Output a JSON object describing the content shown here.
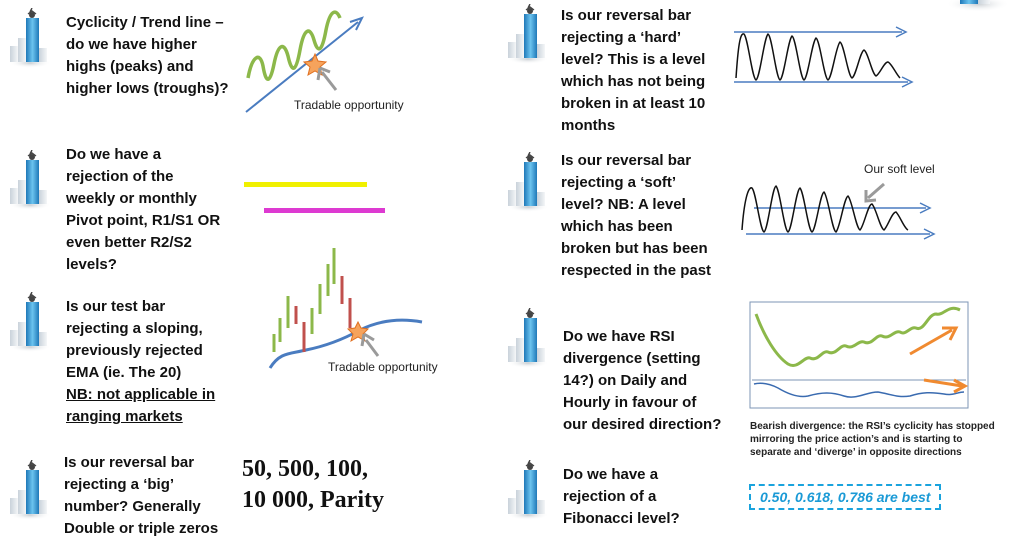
{
  "colors": {
    "wave_green": "#8cb84a",
    "trend_blue": "#4a7cc0",
    "star_orange": "#f6a35c",
    "pivot_yellow": "#f0f000",
    "pivot_magenta": "#dd3ad1",
    "bar_red": "#c0504d",
    "arrow_orange": "#f08a30",
    "fib_border": "#1aa3dd",
    "icon_blue": "#3399cc"
  },
  "items": {
    "trend": {
      "lines": [
        "Cyclicity / Trend line –",
        "do we have higher",
        "highs (peaks) and",
        "higher lows (troughs)?"
      ],
      "callout": "Tradable opportunity"
    },
    "pivot": {
      "lines": [
        "Do we have a",
        "rejection of the",
        "weekly or monthly",
        "Pivot point, R1/S1 OR",
        "even better R2/S2",
        "levels?"
      ]
    },
    "ema": {
      "lines": [
        "Is our test bar",
        "rejecting a sloping,",
        "previously rejected",
        "EMA (ie. The 20)"
      ],
      "underlined": [
        "NB: not applicable in",
        "ranging markets"
      ],
      "callout": "Tradable opportunity"
    },
    "big_number": {
      "lines": [
        "Is our reversal bar",
        "rejecting a ‘big’",
        "number? Generally",
        "Double or triple zeros"
      ],
      "numbers": [
        "50, 500, 100,",
        "10 000, Parity"
      ]
    },
    "hard_level": {
      "lines": [
        "Is our reversal bar",
        "rejecting a ‘hard’",
        "level? This is a level",
        "which has not being",
        "broken in at least 10",
        "months"
      ]
    },
    "soft_level": {
      "lines": [
        "Is our reversal bar",
        "rejecting a ‘soft’",
        "level? NB: A level",
        "which has been",
        "broken but has been",
        "respected in the past"
      ],
      "callout": "Our soft level"
    },
    "rsi": {
      "lines": [
        "Do we have RSI",
        "divergence (setting",
        "14?) on Daily and",
        "Hourly in favour of",
        "our desired direction?"
      ],
      "caption": [
        "Bearish divergence: the RSI’s  cyclicity has stopped",
        "mirroring the price action’s and is starting to",
        "separate and ‘diverge’ in opposite directions"
      ]
    },
    "fibonacci": {
      "lines": [
        "Do we have a",
        "rejection of a",
        "Fibonacci level?"
      ],
      "levels": "0.50, 0.618, 0.786 are best"
    }
  }
}
